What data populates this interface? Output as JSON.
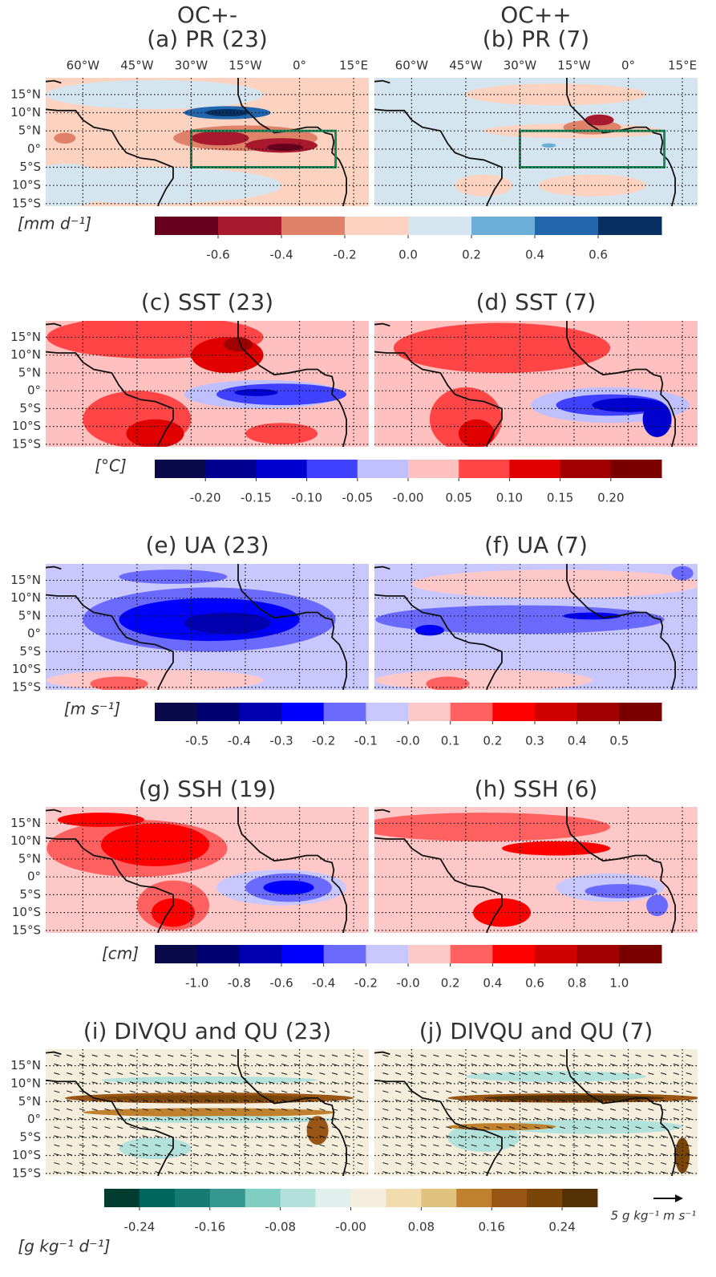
{
  "columns": [
    "OC+-",
    "OC++"
  ],
  "lon_range": [
    -70.3,
    19.2
  ],
  "lat_range": [
    -15.7,
    19.6
  ],
  "lon_ticks": [
    {
      "value": -60,
      "label": "60°W"
    },
    {
      "value": -45,
      "label": "45°W"
    },
    {
      "value": -30,
      "label": "30°W"
    },
    {
      "value": -15,
      "label": "15°W"
    },
    {
      "value": 0,
      "label": "0°"
    },
    {
      "value": 15,
      "label": "15°E"
    }
  ],
  "lat_ticks": [
    {
      "value": 15,
      "label": "15°N"
    },
    {
      "value": 10,
      "label": "10°N"
    },
    {
      "value": 5,
      "label": "5°N"
    },
    {
      "value": 0,
      "label": "0°"
    },
    {
      "value": -5,
      "label": "5°S"
    },
    {
      "value": -10,
      "label": "10°S"
    },
    {
      "value": -15,
      "label": "15°S"
    }
  ],
  "rows": [
    {
      "titles": [
        "(a) PR (23)",
        "(b) PR (7)"
      ],
      "unit": "[mm d⁻¹]",
      "colorbar": {
        "range": [
          -0.8,
          0.8
        ],
        "colors": [
          "#67001f",
          "#a8192e",
          "#e0826a",
          "#fbd3c0",
          "#d5e5ef",
          "#6baed6",
          "#2166ac",
          "#053061"
        ],
        "ticks": [
          -0.6,
          -0.4,
          -0.2,
          {
            "value": 0,
            "label": "0.0"
          },
          0.2,
          0.4,
          0.6
        ]
      }
    },
    {
      "titles": [
        "(c) SST (23)",
        "(d) SST (7)"
      ],
      "unit": "[°C]",
      "colorbar": {
        "range": [
          -0.25,
          0.25
        ],
        "colors": [
          "#0a0a4a",
          "#000090",
          "#0000d0",
          "#4040ff",
          "#c0c0ff",
          "#ffc0c0",
          "#ff4545",
          "#e00000",
          "#a00000",
          "#7a0000"
        ],
        "ticks": [
          {
            "value": -0.2,
            "label": "-0.20"
          },
          {
            "value": -0.15,
            "label": "-0.15"
          },
          {
            "value": -0.1,
            "label": "-0.10"
          },
          {
            "value": -0.05,
            "label": "-0.05"
          },
          {
            "value": 0,
            "label": "-0.00"
          },
          {
            "value": 0.05,
            "label": "0.05"
          },
          {
            "value": 0.1,
            "label": "0.10"
          },
          {
            "value": 0.15,
            "label": "0.15"
          },
          {
            "value": 0.2,
            "label": "0.20"
          }
        ]
      }
    },
    {
      "titles": [
        "(e) UA (23)",
        "(f) UA (7)"
      ],
      "unit": "[m s⁻¹]",
      "colorbar": {
        "range": [
          -0.6,
          0.6
        ],
        "colors": [
          "#0a0a4a",
          "#000070",
          "#0000b0",
          "#0000ff",
          "#6a6aff",
          "#c8c8ff",
          "#ffc8c8",
          "#ff6060",
          "#ff0000",
          "#d00000",
          "#a00000",
          "#7a0000"
        ],
        "ticks": [
          -0.5,
          -0.4,
          -0.3,
          -0.2,
          -0.1,
          {
            "value": 0,
            "label": "-0.0"
          },
          0.1,
          0.2,
          0.3,
          0.4,
          0.5
        ]
      }
    },
    {
      "titles": [
        "(g) SSH (19)",
        "(h) SSH (6)"
      ],
      "unit": "[cm]",
      "colorbar": {
        "range": [
          -1.2,
          1.2
        ],
        "colors": [
          "#0a0a4a",
          "#000070",
          "#0000b0",
          "#0000ff",
          "#6a6aff",
          "#c8c8ff",
          "#ffc8c8",
          "#ff6060",
          "#ff0000",
          "#d00000",
          "#a00000",
          "#7a0000"
        ],
        "ticks": [
          {
            "value": -1,
            "label": "-1.0"
          },
          -0.8,
          -0.6,
          -0.4,
          -0.2,
          {
            "value": 0,
            "label": "-0.0"
          },
          0.2,
          0.4,
          0.6,
          0.8,
          {
            "value": 1,
            "label": "1.0"
          }
        ]
      }
    },
    {
      "titles": [
        "(i) DIVQU and QU (23)",
        "(j) DIVQU and QU (7)"
      ],
      "unit": "[g kg⁻¹ d⁻¹]",
      "colorbar": {
        "range": [
          -0.28,
          0.28
        ],
        "colors": [
          "#003c30",
          "#01665e",
          "#177b73",
          "#35978f",
          "#80cdc1",
          "#b3e2dc",
          "#e0f0ed",
          "#f6eedd",
          "#f2dcae",
          "#dfc27d",
          "#bf812d",
          "#995513",
          "#7a4508",
          "#543005"
        ],
        "ticks": [
          -0.24,
          -0.16,
          -0.08,
          {
            "value": 0,
            "label": "-0.00"
          },
          0.08,
          0.16,
          0.24
        ]
      }
    }
  ],
  "vector_key": "5 g kg⁻¹ m s⁻¹"
}
